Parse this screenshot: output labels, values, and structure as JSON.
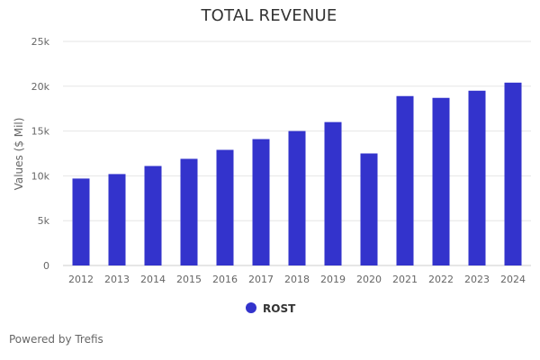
{
  "chart_data": {
    "type": "bar",
    "title": "TOTAL REVENUE",
    "ylabel": "Values ($ Mil)",
    "xlabel": "",
    "categories": [
      "2012",
      "2013",
      "2014",
      "2015",
      "2016",
      "2017",
      "2018",
      "2019",
      "2020",
      "2021",
      "2022",
      "2023",
      "2024"
    ],
    "series": [
      {
        "name": "ROST",
        "color": "#3333cc",
        "values": [
          9700,
          10200,
          11100,
          11900,
          12900,
          14100,
          15000,
          16000,
          12500,
          18900,
          18700,
          19500,
          20400
        ]
      }
    ],
    "ylim": [
      0,
      25000
    ],
    "yticks": [
      0,
      5000,
      10000,
      15000,
      20000,
      25000
    ],
    "ytick_labels": [
      "0",
      "5k",
      "10k",
      "15k",
      "20k",
      "25k"
    ],
    "grid": true,
    "legend_position": "bottom-center"
  },
  "footer": {
    "credit": "Powered by Trefis"
  }
}
